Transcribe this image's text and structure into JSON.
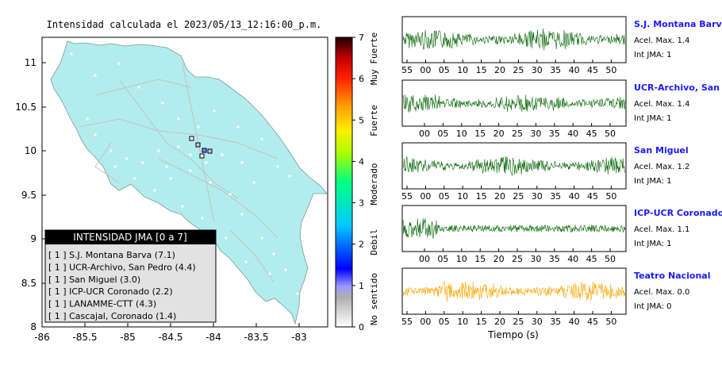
{
  "map": {
    "title": "Intensidad calculada el 2023/05/13_12:16:00_p.m.",
    "x_ticks": [
      "-86",
      "-85.5",
      "-85",
      "-84.5",
      "-84",
      "-83.5",
      "-83"
    ],
    "y_ticks": [
      "11",
      "10.5",
      "10",
      "9.5",
      "9",
      "8.5",
      "8"
    ],
    "land_color": "#b3ecec",
    "legend": {
      "header": "INTENSIDAD JMA [0 a 7]",
      "items": [
        "[ 1 ]  S.J. Montana Barva (7.1)",
        "[ 1 ]  UCR-Archivo, San Pedro (4.4)",
        "[ 1 ]  San Miguel (3.0)",
        "[ 1 ]  ICP-UCR Coronado (2.2)",
        "[ 1 ]  LANAMME-CTT (4.3)",
        "[ 1 ]  Cascajal, Coronado (1.4)"
      ]
    }
  },
  "colorbar": {
    "ticks": [
      "7",
      "6",
      "5",
      "4",
      "3",
      "2",
      "1",
      "0"
    ],
    "labels": [
      "Muy Fuerte",
      "Fuerte",
      "Moderado",
      "Debil",
      "No sentido"
    ]
  },
  "stations": [
    {
      "name": "S.J. Montana Barva",
      "accel_label": "Acel. Max. 1.4",
      "jma_label": "Int JMA: 1",
      "color": "#006400",
      "amp": 0.55,
      "ticks": [
        "55",
        "00",
        "05",
        "10",
        "15",
        "20",
        "25",
        "30",
        "35",
        "40",
        "45",
        "50"
      ]
    },
    {
      "name": "UCR-Archivo, San Pedro",
      "accel_label": "Acel. Max. 1.4",
      "jma_label": "Int JMA: 1",
      "color": "#006400",
      "amp": 0.5,
      "ticks": [
        "00",
        "05",
        "10",
        "15",
        "20",
        "25",
        "30",
        "35",
        "40",
        "45",
        "50",
        "55"
      ]
    },
    {
      "name": "San Miguel",
      "accel_label": "Acel. Max. 1.2",
      "jma_label": "Int JMA: 1",
      "color": "#006400",
      "amp": 0.5,
      "ticks": [
        "55",
        "00",
        "05",
        "10",
        "15",
        "20",
        "25",
        "30",
        "35",
        "40",
        "45",
        "50"
      ]
    },
    {
      "name": "ICP-UCR Coronado",
      "accel_label": "Acel. Max. 1.1",
      "jma_label": "Int JMA: 1",
      "color": "#006400",
      "amp": 0.45,
      "ticks": [
        "00",
        "05",
        "10",
        "15",
        "20",
        "25",
        "30",
        "35",
        "40",
        "45",
        "50",
        "55"
      ]
    },
    {
      "name": "Teatro Nacional",
      "accel_label": "Acel. Max. 0.0",
      "jma_label": "Int JMA: 0",
      "color": "#ffa500",
      "amp": 0.5,
      "ticks": [
        "55",
        "00",
        "05",
        "10",
        "15",
        "20",
        "25",
        "30",
        "35",
        "40",
        "45",
        "50"
      ]
    }
  ],
  "xaxis_label": "Tiempo (s)"
}
